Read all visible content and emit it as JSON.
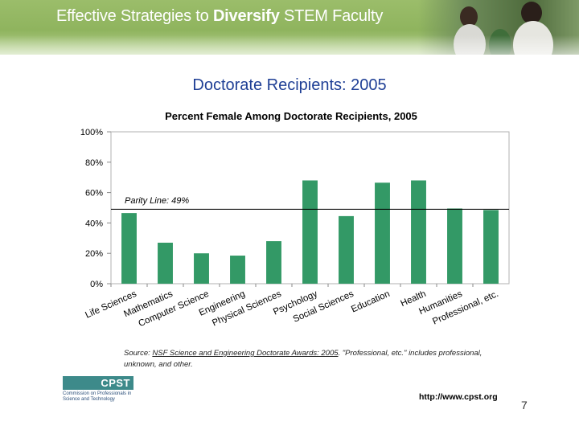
{
  "banner": {
    "title_regular": "Effective Strategies to ",
    "title_bold": "Diversify",
    "title_end": " STEM Faculty"
  },
  "slide_title": "Doctorate Recipients: 2005",
  "chart_data": {
    "type": "bar",
    "title": "Percent Female Among Doctorate Recipients, 2005",
    "categories": [
      "Life Sciences",
      "Mathematics",
      "Computer Science",
      "Engineering",
      "Physical Sciences",
      "Psychology",
      "Social Sciences",
      "Education",
      "Health",
      "Humanities",
      "Professional, etc."
    ],
    "values": [
      46.5,
      27,
      20,
      18.5,
      28,
      68,
      44.5,
      66.5,
      68,
      49.5,
      48.5
    ],
    "unit": "%",
    "ylim": [
      0,
      100
    ],
    "yticks": [
      0,
      20,
      40,
      60,
      80,
      100
    ],
    "ytick_labels": [
      "0%",
      "20%",
      "40%",
      "60%",
      "80%",
      "100%"
    ],
    "reference_line": {
      "value": 49,
      "label": "Parity Line: 49%"
    },
    "bar_color": "#339966",
    "grid": false
  },
  "source": {
    "prefix": "Source: ",
    "link_text": "NSF Science and Engineering Doctorate Awards: 2005",
    "suffix": ". \"Professional, etc.\" includes professional, unknown, and other."
  },
  "logo": {
    "mark": "CPST",
    "text": "Commission on Professionals in Science and Technology"
  },
  "url": "http://www.cpst.org",
  "page_number": "7"
}
